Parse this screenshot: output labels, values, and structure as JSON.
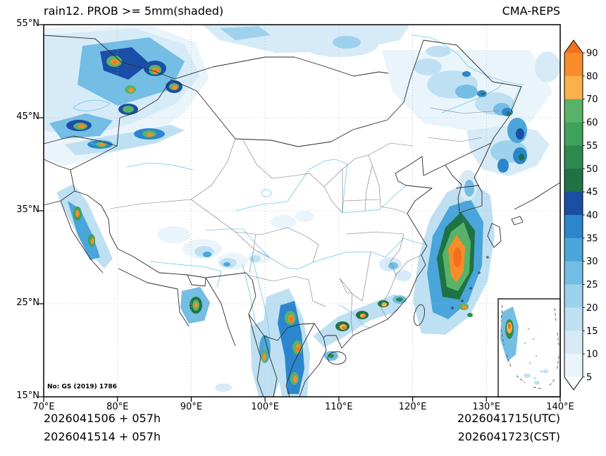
{
  "title": "rain12. PROB >= 5mm(shaded)",
  "model": "CMA-REPS",
  "axes": {
    "lat_ticks": [
      "55°N",
      "45°N",
      "35°N",
      "25°N",
      "15°N"
    ],
    "lon_ticks": [
      "70°E",
      "80°E",
      "90°E",
      "100°E",
      "110°E",
      "120°E",
      "130°E",
      "140°E"
    ]
  },
  "colorbar": {
    "levels": [
      "90",
      "80",
      "70",
      "60",
      "55",
      "50",
      "45",
      "40",
      "35",
      "30",
      "25",
      "20",
      "15",
      "10",
      "5"
    ],
    "band_colors_top_to_bottom": [
      "#f78c2a",
      "#fbb049",
      "#58b368",
      "#3fa15a",
      "#2d8a4e",
      "#1f7243",
      "#1b4ea6",
      "#2b86cd",
      "#4aa5da",
      "#74bde4",
      "#9ed2ec",
      "#bfe0f3",
      "#d6ebf7",
      "#eaf5fb"
    ],
    "arrow_top_color": "#f2701d",
    "arrow_bottom_color": "#ffffff"
  },
  "annotations": {
    "license": "No: GS (2019) 1786"
  },
  "footer": {
    "init_utc": "2026041506 + 057h",
    "init_cst": "2026041514 + 057h",
    "valid_utc": "2026041715(UTC)",
    "valid_cst": "2026041723(CST)"
  }
}
